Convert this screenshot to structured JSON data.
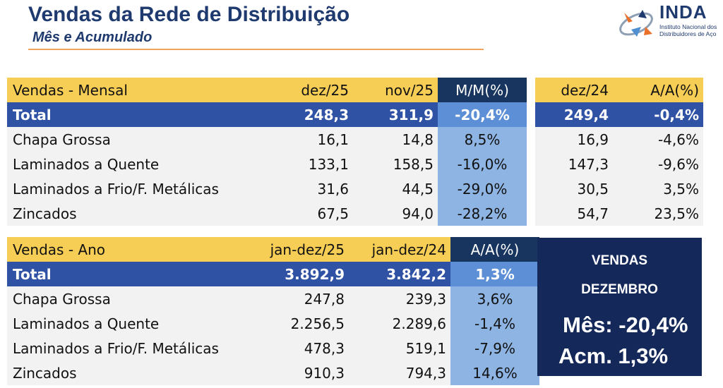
{
  "header": {
    "title": "Vendas da Rede de Distribuição",
    "subtitle": "Mês e Acumulado"
  },
  "logo": {
    "name": "INDA",
    "line1": "Instituto Nacional dos",
    "line2": "Distribuidores de Aço"
  },
  "monthly": {
    "headers": [
      "Vendas - Mensal",
      "dez/25",
      "nov/25",
      "M/M(%)",
      "dez/24",
      "A/A(%)"
    ],
    "total": [
      "Total",
      "248,3",
      "311,9",
      "-20,4%",
      "249,4",
      "-0,4%"
    ],
    "rows": [
      [
        "Chapa Grossa",
        "16,1",
        "14,8",
        "8,5%",
        "16,9",
        "-4,6%"
      ],
      [
        "Laminados a Quente",
        "133,1",
        "158,5",
        "-16,0%",
        "147,3",
        "-9,6%"
      ],
      [
        "Laminados a Frio/F. Metálicas",
        "31,6",
        "44,5",
        "-29,0%",
        "30,5",
        "3,5%"
      ],
      [
        "Zincados",
        "67,5",
        "94,0",
        "-28,2%",
        "54,7",
        "23,5%"
      ]
    ]
  },
  "annual": {
    "headers": [
      "Vendas - Ano",
      "jan-dez/25",
      "jan-dez/24",
      "A/A(%)"
    ],
    "total": [
      "Total",
      "3.892,9",
      "3.842,2",
      "1,3%"
    ],
    "rows": [
      [
        "Chapa Grossa",
        "247,8",
        "239,3",
        "3,6%"
      ],
      [
        "Laminados a Quente",
        "2.256,5",
        "2.289,6",
        "-1,4%"
      ],
      [
        "Laminados a Frio/F. Metálicas",
        "478,3",
        "519,1",
        "-7,9%"
      ],
      [
        "Zincados",
        "910,3",
        "794,3",
        "14,6%"
      ]
    ]
  },
  "summary": {
    "line1": "VENDAS",
    "line2": "DEZEMBRO",
    "month": "Mês: -20,4%",
    "accum": "Acm. 1,3%"
  },
  "colors": {
    "header_yellow": "#f6cd55",
    "header_dark": "#17355f",
    "total_blue": "#2f52a4",
    "highlight_blue": "#8db4e2",
    "box_navy": "#14285a"
  }
}
